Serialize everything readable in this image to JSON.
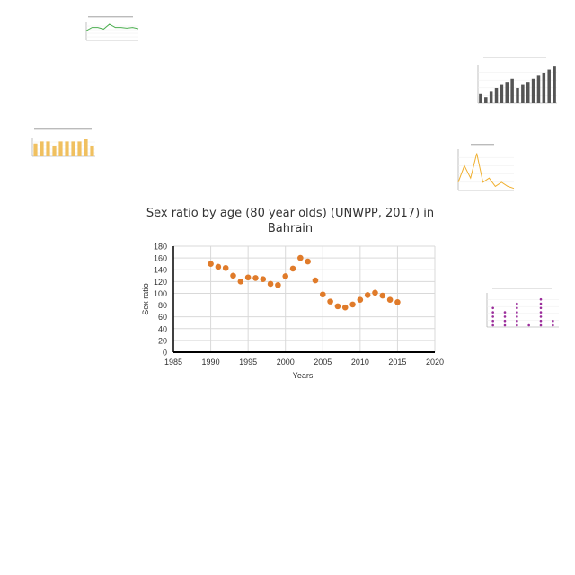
{
  "chart_data": {
    "type": "scatter",
    "title": "Sex ratio by age (80 year olds) (UNWPP, 2017) in Bahrain",
    "xlabel": "Years",
    "ylabel": "Sex ratio",
    "xlim": [
      1985,
      2020
    ],
    "ylim": [
      0,
      180
    ],
    "xticks": [
      1985,
      1990,
      1995,
      2000,
      2005,
      2010,
      2015,
      2020
    ],
    "yticks": [
      0,
      20,
      40,
      60,
      80,
      100,
      120,
      140,
      160,
      180
    ],
    "grid": true,
    "color": "#e07b2a",
    "x": [
      1990,
      1991,
      1992,
      1993,
      1994,
      1995,
      1996,
      1997,
      1998,
      1999,
      2000,
      2001,
      2002,
      2003,
      2004,
      2005,
      2006,
      2007,
      2008,
      2009,
      2010,
      2011,
      2012,
      2013,
      2014,
      2015
    ],
    "y": [
      150,
      145,
      143,
      130,
      120,
      127,
      126,
      124,
      116,
      114,
      129,
      142,
      160,
      154,
      122,
      98,
      86,
      78,
      76,
      81,
      89,
      97,
      101,
      96,
      89,
      85
    ]
  },
  "thumbnails": {
    "line_top": {
      "color": "#4caf50",
      "values": [
        3,
        4,
        4,
        3.5,
        5,
        4,
        4,
        3.8,
        4,
        3.6
      ]
    },
    "bar_right": {
      "color": "#555555",
      "values": [
        3,
        2,
        4,
        5,
        6,
        7,
        8,
        5,
        6,
        7,
        8,
        9,
        10,
        11,
        12
      ]
    },
    "bar_left": {
      "color": "#f0c060",
      "values": [
        6,
        7,
        7,
        5,
        7,
        7,
        7,
        7,
        8,
        5
      ]
    },
    "line_small": {
      "color": "#f0b030",
      "values": [
        2,
        6,
        3,
        9,
        2,
        3,
        1,
        2,
        1,
        0.5
      ]
    },
    "dots_small": {
      "color": "#9b2d9b",
      "values": [
        5,
        4,
        6,
        0.5,
        7,
        2
      ]
    }
  }
}
